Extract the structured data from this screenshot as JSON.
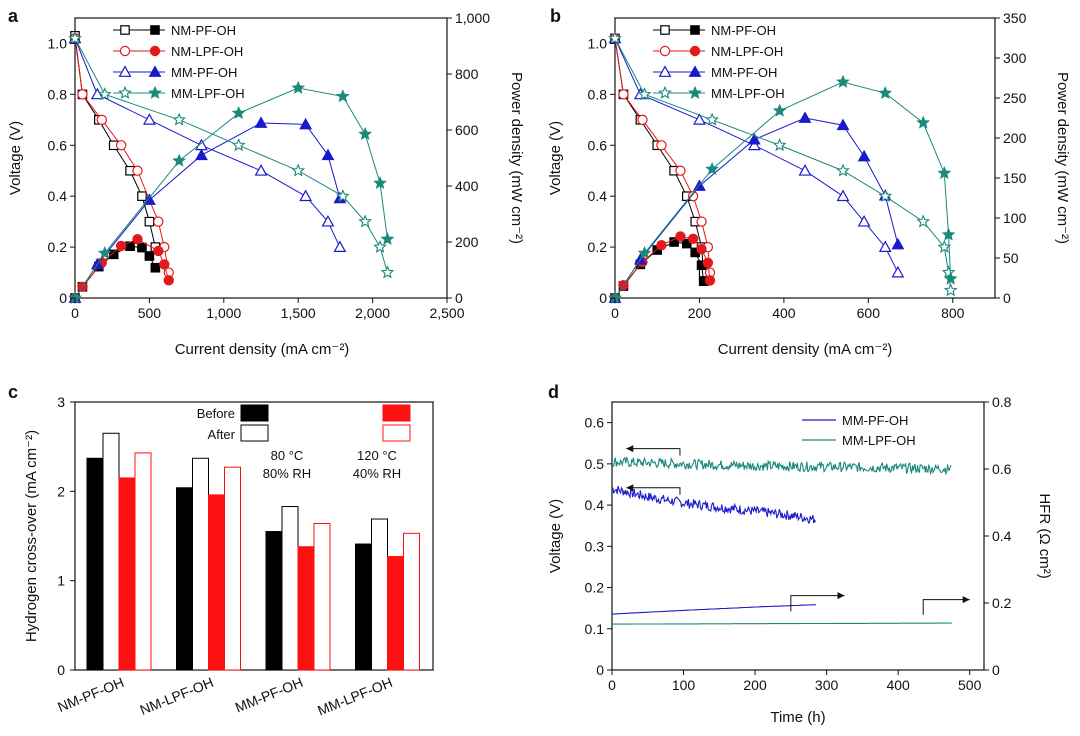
{
  "colors": {
    "NM-PF-OH": "#000000",
    "NM-LPF-OH": "#e31a1c",
    "MM-PF-OH": "#1a1acc",
    "MM-LPF-OH": "#1b8a7a",
    "cond1": "#000000",
    "cond2": "#ff1010"
  },
  "chart_data": [
    {
      "panel": "a",
      "type": "line",
      "xlabel": "Current density (mA cm⁻²)",
      "ylabel": "Voltage (V)",
      "y2label": "Power density (mW cm⁻²)",
      "xlim": [
        0,
        2500
      ],
      "ylim": [
        0,
        1.1
      ],
      "y2lim": [
        0,
        1000
      ],
      "xticks": [
        "0",
        "500",
        "1,000",
        "1,500",
        "2,000",
        "2,500"
      ],
      "xtick_values": [
        0,
        500,
        1000,
        1500,
        2000,
        2500
      ],
      "yticks": [
        "0",
        "0.2",
        "0.4",
        "0.6",
        "0.8",
        "1.0"
      ],
      "ytick_values": [
        0,
        0.2,
        0.4,
        0.6,
        0.8,
        1.0
      ],
      "y2ticks": [
        "0",
        "200",
        "400",
        "600",
        "800",
        "1,000"
      ],
      "y2tick_values": [
        0,
        200,
        400,
        600,
        800,
        1000
      ],
      "legend": [
        "NM-PF-OH",
        "NM-LPF-OH",
        "MM-PF-OH",
        "MM-LPF-OH"
      ],
      "series": [
        {
          "name": "NM-PF-OH",
          "marker": "square",
          "voltage": {
            "x": [
              0,
              50,
              160,
              260,
              370,
              450,
              500,
              540
            ],
            "y": [
              1.03,
              0.8,
              0.7,
              0.6,
              0.5,
              0.4,
              0.3,
              0.2
            ]
          },
          "power": {
            "x": [
              0,
              50,
              160,
              260,
              370,
              450,
              500,
              540
            ],
            "y": [
              0,
              40,
              112,
              156,
              185,
              180,
              150,
              108
            ]
          }
        },
        {
          "name": "NM-LPF-OH",
          "marker": "circle",
          "voltage": {
            "x": [
              0,
              50,
              180,
              310,
              420,
              560,
              600,
              630
            ],
            "y": [
              1.02,
              0.8,
              0.7,
              0.6,
              0.5,
              0.3,
              0.2,
              0.1
            ]
          },
          "power": {
            "x": [
              0,
              50,
              180,
              310,
              420,
              560,
              600,
              630
            ],
            "y": [
              0,
              40,
              126,
              186,
              210,
              168,
              120,
              63
            ]
          }
        },
        {
          "name": "MM-PF-OH",
          "marker": "triangle",
          "voltage": {
            "x": [
              0,
              150,
              500,
              850,
              1250,
              1550,
              1700,
              1780
            ],
            "y": [
              1.02,
              0.8,
              0.7,
              0.6,
              0.5,
              0.4,
              0.3,
              0.2
            ]
          },
          "power": {
            "x": [
              0,
              150,
              500,
              850,
              1250,
              1550,
              1700,
              1780
            ],
            "y": [
              0,
              120,
              350,
              510,
              625,
              620,
              510,
              356
            ]
          }
        },
        {
          "name": "MM-LPF-OH",
          "marker": "star",
          "voltage": {
            "x": [
              0,
              200,
              700,
              1100,
              1500,
              1800,
              1950,
              2050,
              2100
            ],
            "y": [
              1.02,
              0.8,
              0.7,
              0.6,
              0.5,
              0.4,
              0.3,
              0.2,
              0.1
            ]
          },
          "power": {
            "x": [
              0,
              200,
              700,
              1100,
              1500,
              1800,
              1950,
              2050,
              2100
            ],
            "y": [
              0,
              160,
              490,
              660,
              750,
              720,
              585,
              410,
              210
            ]
          }
        }
      ]
    },
    {
      "panel": "b",
      "type": "line",
      "xlabel": "Current density (mA cm⁻²)",
      "ylabel": "Voltage (V)",
      "y2label": "Power density (mW cm⁻²)",
      "xlim": [
        0,
        900
      ],
      "ylim": [
        0,
        1.1
      ],
      "y2lim": [
        0,
        350
      ],
      "xticks": [
        "0",
        "200",
        "400",
        "600",
        "800"
      ],
      "xtick_values": [
        0,
        200,
        400,
        600,
        800
      ],
      "yticks": [
        "0",
        "0.2",
        "0.4",
        "0.6",
        "0.8",
        "1.0"
      ],
      "ytick_values": [
        0,
        0.2,
        0.4,
        0.6,
        0.8,
        1.0
      ],
      "y2ticks": [
        "0",
        "50",
        "100",
        "150",
        "200",
        "250",
        "300",
        "350"
      ],
      "y2tick_values": [
        0,
        50,
        100,
        150,
        200,
        250,
        300,
        350
      ],
      "legend": [
        "NM-PF-OH",
        "NM-LPF-OH",
        "MM-PF-OH",
        "MM-LPF-OH"
      ],
      "series": [
        {
          "name": "NM-PF-OH",
          "marker": "square",
          "voltage": {
            "x": [
              0,
              20,
              60,
              100,
              140,
              170,
              190,
              205,
              210
            ],
            "y": [
              1.02,
              0.8,
              0.7,
              0.6,
              0.5,
              0.4,
              0.3,
              0.2,
              0.1
            ]
          },
          "power": {
            "x": [
              0,
              20,
              60,
              100,
              140,
              170,
              190,
              205,
              210
            ],
            "y": [
              0,
              15,
              42,
              60,
              70,
              68,
              57,
              41,
              21
            ]
          }
        },
        {
          "name": "NM-LPF-OH",
          "marker": "circle",
          "voltage": {
            "x": [
              0,
              20,
              65,
              110,
              155,
              185,
              205,
              220,
              225
            ],
            "y": [
              1.02,
              0.8,
              0.7,
              0.6,
              0.5,
              0.4,
              0.3,
              0.2,
              0.1
            ]
          },
          "power": {
            "x": [
              0,
              20,
              65,
              110,
              155,
              185,
              205,
              220,
              225
            ],
            "y": [
              0,
              16,
              45,
              66,
              77,
              74,
              61,
              44,
              22
            ]
          }
        },
        {
          "name": "MM-PF-OH",
          "marker": "triangle",
          "voltage": {
            "x": [
              0,
              60,
              200,
              330,
              450,
              540,
              590,
              640,
              670
            ],
            "y": [
              1.02,
              0.8,
              0.7,
              0.6,
              0.5,
              0.4,
              0.3,
              0.2,
              0.1
            ]
          },
          "power": {
            "x": [
              0,
              60,
              200,
              330,
              450,
              540,
              590,
              640,
              670
            ],
            "y": [
              0,
              48,
              140,
              198,
              225,
              216,
              177,
              128,
              67
            ]
          }
        },
        {
          "name": "MM-LPF-OH",
          "marker": "star",
          "voltage": {
            "x": [
              0,
              70,
              230,
              390,
              540,
              640,
              730,
              780,
              790,
              795
            ],
            "y": [
              1.02,
              0.8,
              0.7,
              0.6,
              0.5,
              0.4,
              0.3,
              0.2,
              0.1,
              0.03
            ]
          },
          "power": {
            "x": [
              0,
              70,
              230,
              390,
              540,
              640,
              730,
              780,
              790,
              795
            ],
            "y": [
              0,
              56,
              161,
              234,
              270,
              256,
              219,
              156,
              79,
              24
            ]
          }
        }
      ]
    },
    {
      "panel": "c",
      "type": "bar",
      "ylabel": "Hydrogen cross-over (mA cm⁻²)",
      "ylim": [
        0,
        3
      ],
      "yticks": [
        "0",
        "1",
        "2",
        "3"
      ],
      "ytick_values": [
        0,
        1,
        2,
        3
      ],
      "categories": [
        "NM-PF-OH",
        "NM-LPF-OH",
        "MM-PF-OH",
        "MM-LPF-OH"
      ],
      "legend": {
        "rows": [
          "Before",
          "After"
        ],
        "conditions": [
          {
            "line1": "80 °C",
            "line2": "80% RH"
          },
          {
            "line1": "120 °C",
            "line2": "40% RH"
          }
        ]
      },
      "series": [
        {
          "name": "80 °C 80% RH Before",
          "style": "filled",
          "cond": "cond1",
          "values": [
            2.37,
            2.04,
            1.55,
            1.41
          ]
        },
        {
          "name": "80 °C 80% RH After",
          "style": "open",
          "cond": "cond1",
          "values": [
            2.65,
            2.37,
            1.83,
            1.69
          ]
        },
        {
          "name": "120 °C 40% RH Before",
          "style": "filled",
          "cond": "cond2",
          "values": [
            2.15,
            1.96,
            1.38,
            1.27
          ]
        },
        {
          "name": "120 °C 40% RH After",
          "style": "open",
          "cond": "cond2",
          "values": [
            2.43,
            2.27,
            1.64,
            1.53
          ]
        }
      ]
    },
    {
      "panel": "d",
      "type": "line",
      "xlabel": "Time (h)",
      "ylabel": "Voltage (V)",
      "y2label": "HFR (Ω cm²)",
      "xlim": [
        0,
        520
      ],
      "ylim": [
        0,
        0.65
      ],
      "y2lim": [
        0,
        0.8
      ],
      "xticks": [
        "0",
        "100",
        "200",
        "300",
        "400",
        "500"
      ],
      "xtick_values": [
        0,
        100,
        200,
        300,
        400,
        500
      ],
      "yticks": [
        "0",
        "0.1",
        "0.2",
        "0.3",
        "0.4",
        "0.5",
        "0.6"
      ],
      "ytick_values": [
        0,
        0.1,
        0.2,
        0.3,
        0.4,
        0.5,
        0.6
      ],
      "y2ticks": [
        "0",
        "0.2",
        "0.4",
        "0.6",
        "0.8"
      ],
      "y2tick_values": [
        0,
        0.2,
        0.4,
        0.6,
        0.8
      ],
      "legend": [
        "MM-PF-OH",
        "MM-LPF-OH"
      ],
      "series": [
        {
          "name": "MM-PF-OH",
          "axis": "left",
          "noisy": true,
          "x": [
            0,
            50,
            100,
            150,
            200,
            250,
            285
          ],
          "y": [
            0.44,
            0.42,
            0.405,
            0.395,
            0.385,
            0.375,
            0.365
          ]
        },
        {
          "name": "MM-LPF-OH",
          "axis": "left",
          "noisy": true,
          "x": [
            0,
            100,
            200,
            300,
            400,
            475
          ],
          "y": [
            0.505,
            0.5,
            0.495,
            0.493,
            0.49,
            0.488
          ]
        },
        {
          "name": "MM-PF-OH HFR",
          "axis": "right",
          "noisy": false,
          "x": [
            0,
            100,
            200,
            285
          ],
          "y": [
            0.167,
            0.178,
            0.188,
            0.195
          ]
        },
        {
          "name": "MM-LPF-OH HFR",
          "axis": "right",
          "noisy": false,
          "x": [
            0,
            475
          ],
          "y": [
            0.137,
            0.14
          ]
        }
      ]
    }
  ]
}
